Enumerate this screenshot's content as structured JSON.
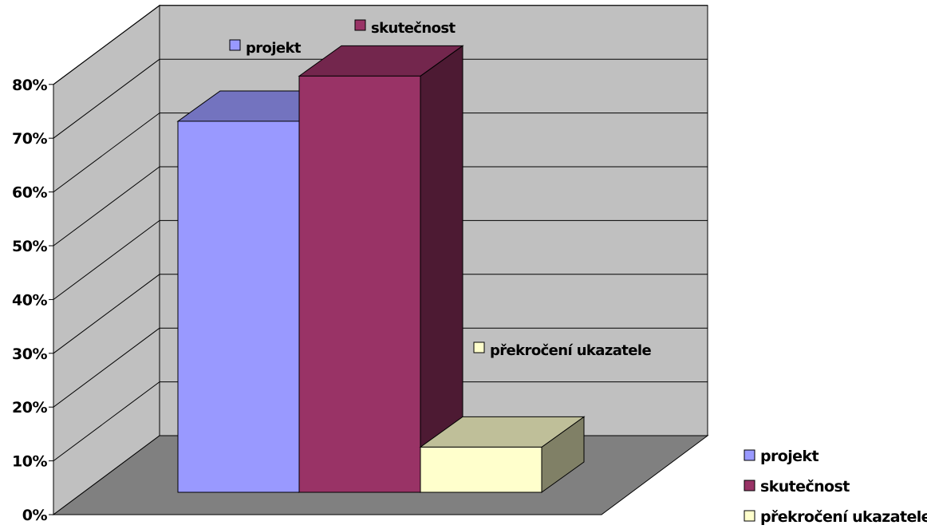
{
  "chart_data": {
    "type": "bar",
    "categories": [
      ""
    ],
    "series": [
      {
        "name": "projekt",
        "values": [
          0.69
        ],
        "color": "#9999FF"
      },
      {
        "name": "skutečnost",
        "values": [
          0.774
        ],
        "color": "#993366"
      },
      {
        "name": "překročení ukazatele",
        "values": [
          0.084
        ],
        "color": "#FFFFCC"
      }
    ],
    "title": "",
    "xlabel": "",
    "ylabel": "",
    "ylim": [
      0,
      0.8
    ],
    "y_ticks": [
      "0%",
      "10%",
      "20%",
      "30%",
      "40%",
      "50%",
      "60%",
      "70%",
      "80%"
    ],
    "grid": true,
    "data_labels": [
      "projekt",
      "skutečnost",
      "překročení ukazatele"
    ],
    "legend": {
      "position": "bottom-right",
      "items": [
        "projekt",
        "skutečnost",
        "překročení ukazatele"
      ]
    },
    "style": "3d-column",
    "colors": {
      "back_wall": "#C0C0C0",
      "side_wall": "#C0C0C0",
      "floor": "#808080",
      "gridline": "#000000"
    }
  }
}
